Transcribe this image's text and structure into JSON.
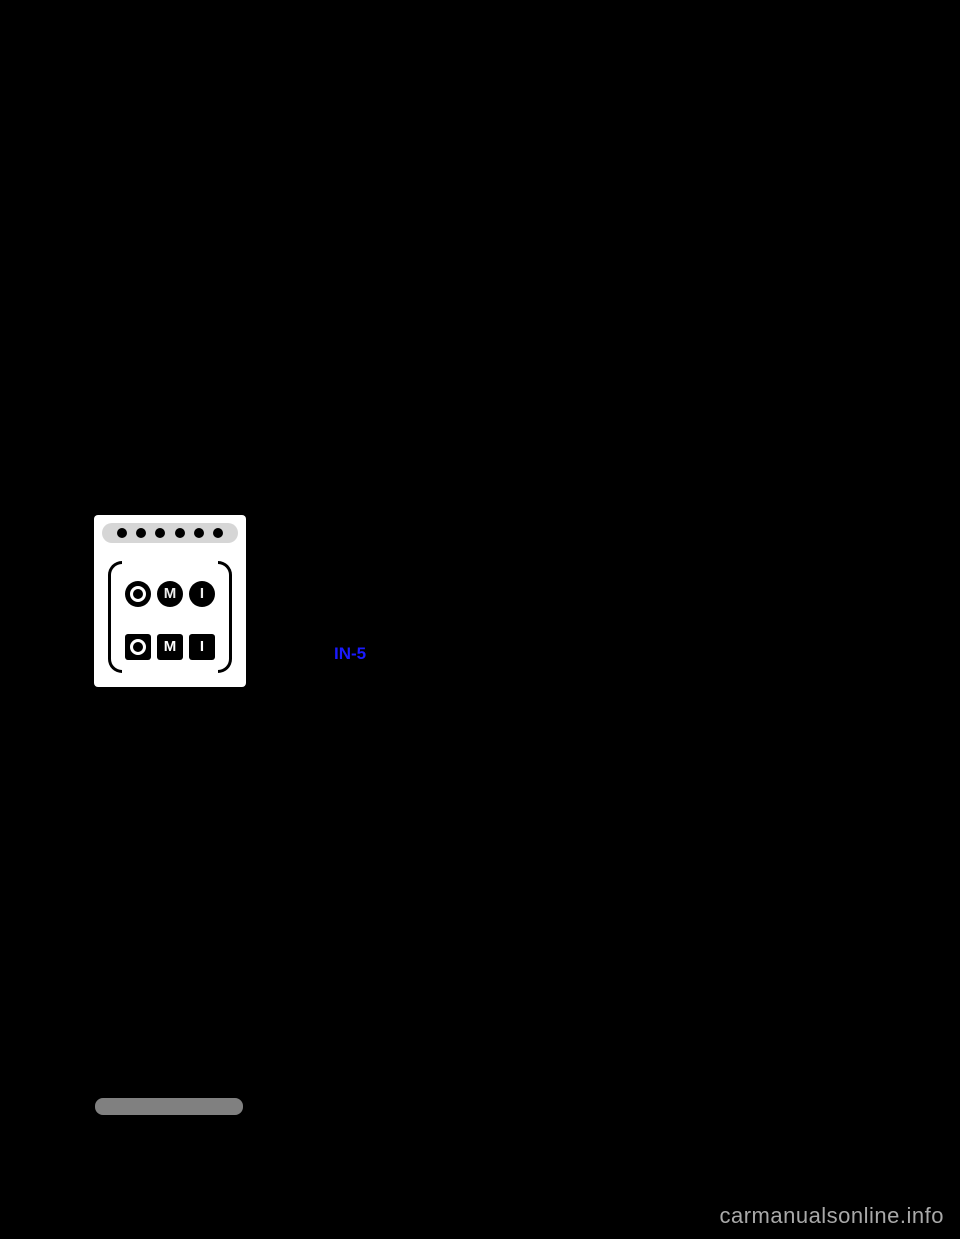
{
  "illustration": {
    "dot_count": 6,
    "dot_color": "#000000",
    "dot_row_bg": "#d6d6d6",
    "background_color": "#ffffff",
    "symbol_rows": [
      {
        "shape": "circle",
        "items": [
          "O",
          "M",
          "I"
        ]
      },
      {
        "shape": "square",
        "items": [
          "O",
          "M",
          "I"
        ]
      }
    ],
    "paren_color": "#000000"
  },
  "reference_link": {
    "text": "IN-5",
    "color": "#1a1aff"
  },
  "bottom_bar": {
    "color": "#808080"
  },
  "watermark": {
    "text": "carmanualsonline.info",
    "color": "#a9a9a9"
  },
  "page_bg": "#000000"
}
